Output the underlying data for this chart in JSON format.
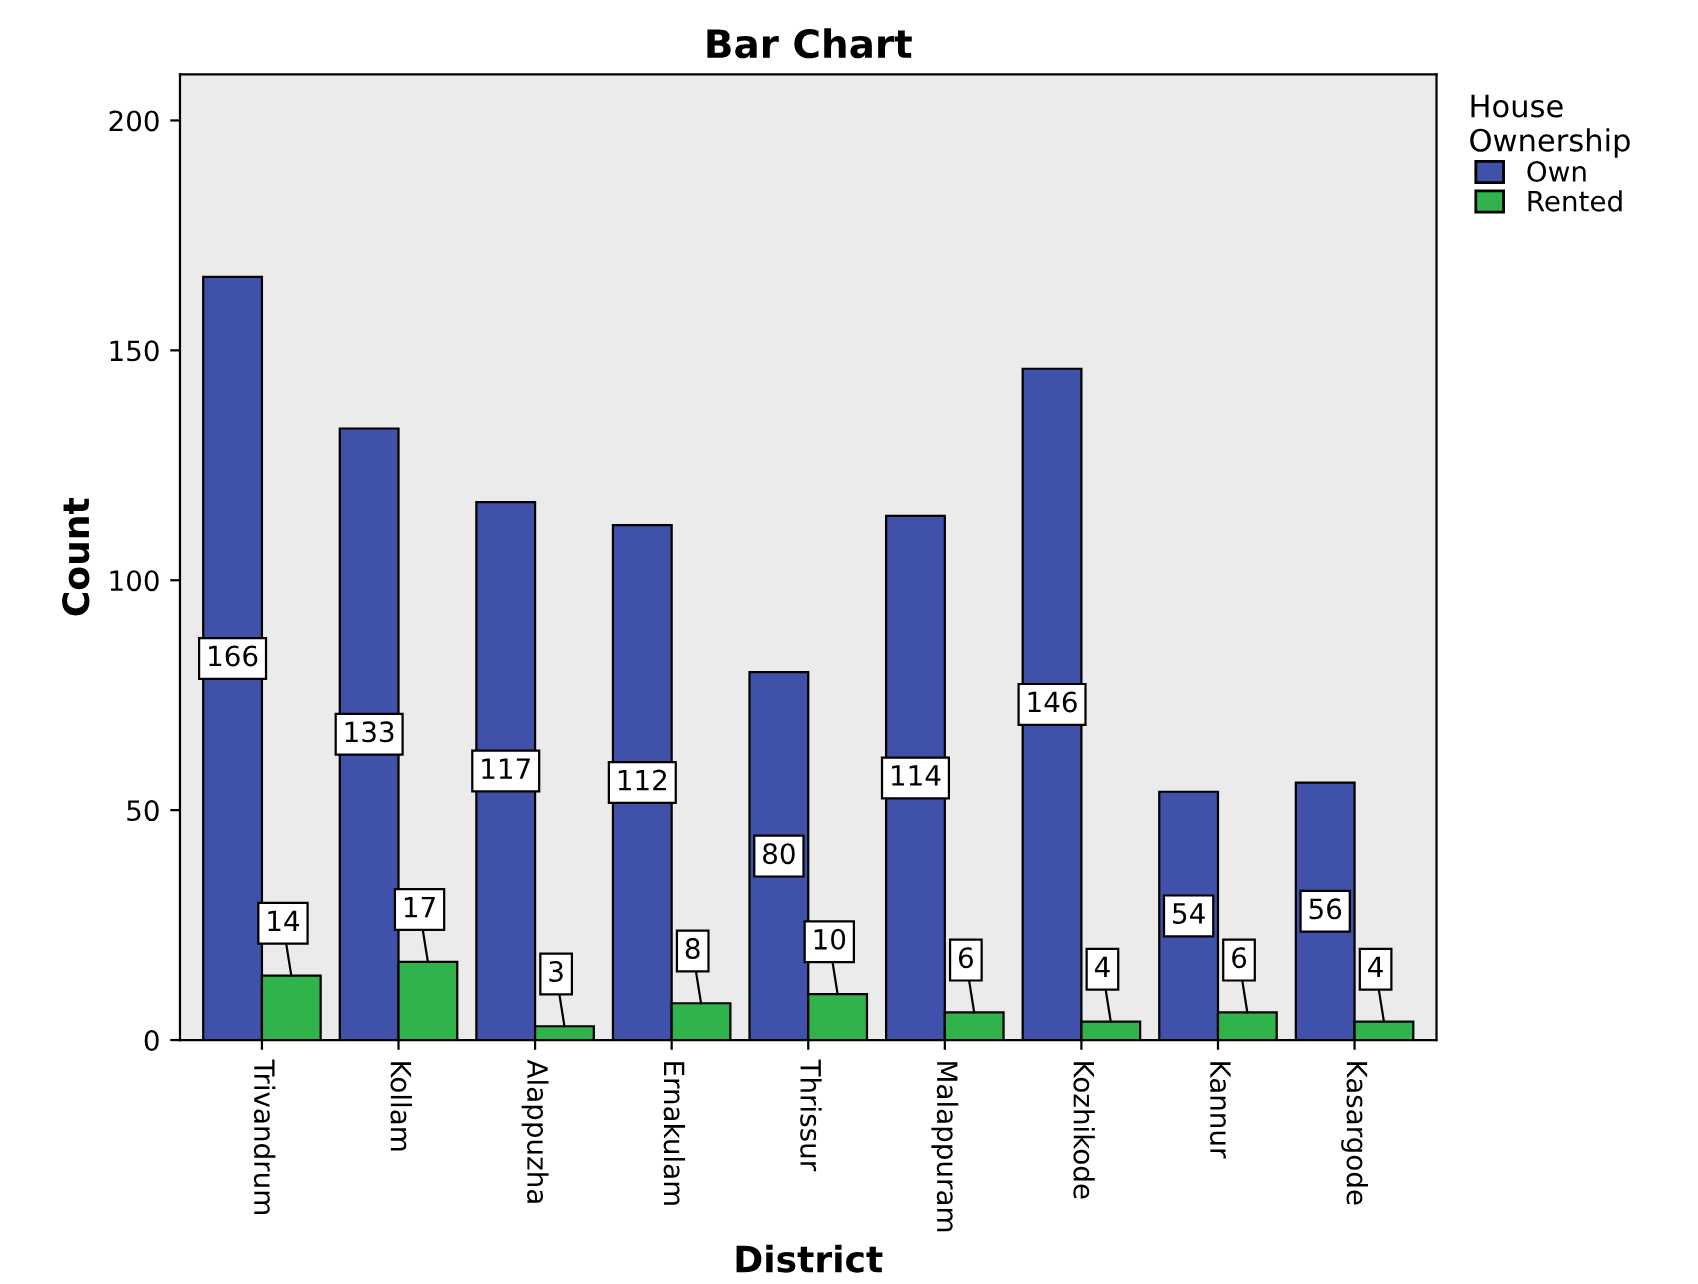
{
  "chart_data": {
    "type": "bar",
    "title": "Bar Chart",
    "xlabel": "District",
    "ylabel": "Count",
    "legend_title": "House Ownership",
    "categories": [
      "Trivandrum",
      "Kollam",
      "Alappuzha",
      "Ernakulam",
      "Thrissur",
      "Malappuram",
      "Kozhikode",
      "Kannur",
      "Kasargode"
    ],
    "series": [
      {
        "name": "Own",
        "color": "#3f51a8",
        "values": [
          166,
          133,
          117,
          112,
          80,
          114,
          146,
          54,
          56
        ]
      },
      {
        "name": "Rented",
        "color": "#2fb34a",
        "values": [
          14,
          17,
          3,
          8,
          10,
          6,
          4,
          6,
          4
        ]
      }
    ],
    "ylim": [
      0,
      210
    ],
    "yticks": [
      0,
      50,
      100,
      150,
      200
    ],
    "grid": false,
    "legend": "top right",
    "data_labels": true
  }
}
